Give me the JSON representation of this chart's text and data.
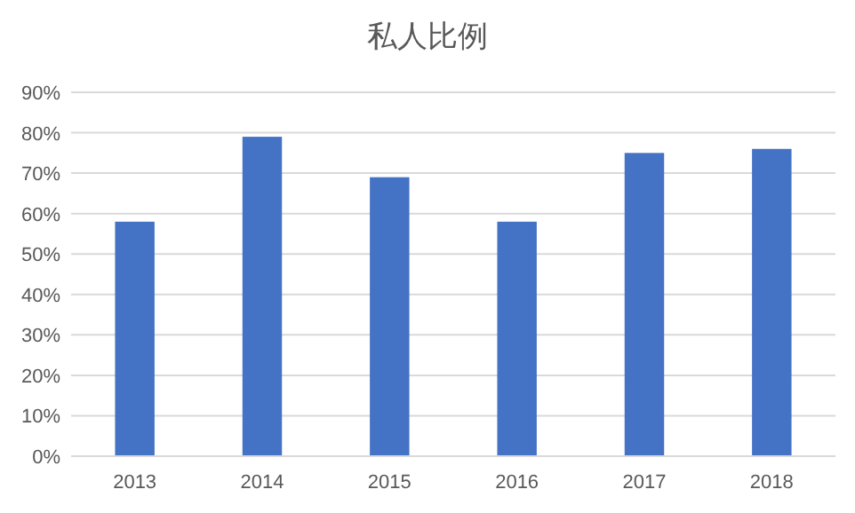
{
  "chart_data": {
    "type": "bar",
    "title": "私人比例",
    "categories": [
      "2013",
      "2014",
      "2015",
      "2016",
      "2017",
      "2018"
    ],
    "values": [
      58,
      79,
      69,
      58,
      75,
      76
    ],
    "color": "#4472c4",
    "ylim": [
      0,
      90
    ],
    "yticks": [
      {
        "value": 0,
        "label": "0%"
      },
      {
        "value": 10,
        "label": "10%"
      },
      {
        "value": 20,
        "label": "20%"
      },
      {
        "value": 30,
        "label": "30%"
      },
      {
        "value": 40,
        "label": "40%"
      },
      {
        "value": 50,
        "label": "50%"
      },
      {
        "value": 60,
        "label": "60%"
      },
      {
        "value": 70,
        "label": "70%"
      },
      {
        "value": 80,
        "label": "80%"
      },
      {
        "value": 90,
        "label": "90%"
      }
    ],
    "grid": "y"
  }
}
